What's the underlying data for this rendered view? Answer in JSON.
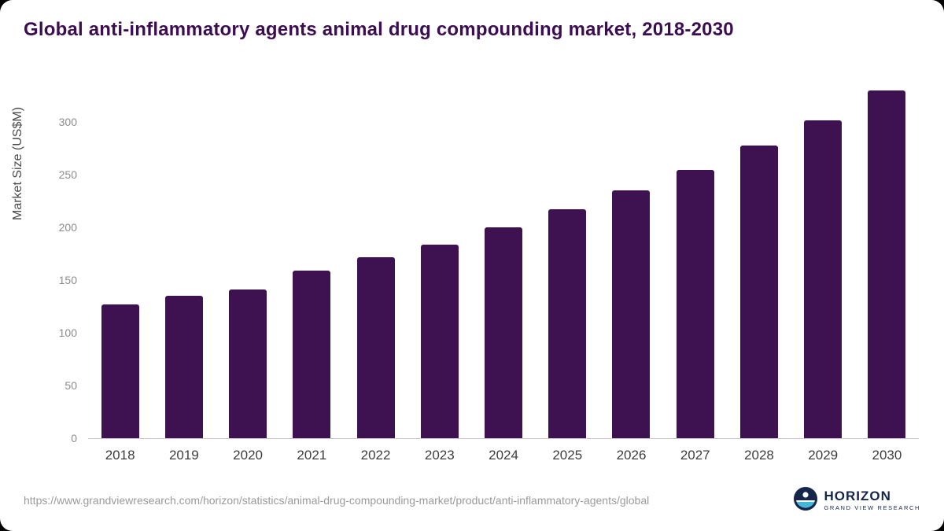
{
  "chart_data": {
    "type": "bar",
    "title": "Global anti-inflammatory agents animal drug compounding market, 2018-2030",
    "xlabel": "",
    "ylabel": "Market Size (US$M)",
    "categories": [
      "2018",
      "2019",
      "2020",
      "2021",
      "2022",
      "2023",
      "2024",
      "2025",
      "2026",
      "2027",
      "2028",
      "2029",
      "2030"
    ],
    "values": [
      127,
      135,
      141,
      159,
      172,
      184,
      200,
      217,
      235,
      255,
      278,
      302,
      330
    ],
    "yticks": [
      0,
      50,
      100,
      150,
      200,
      250,
      300
    ],
    "ylim": [
      0,
      345
    ],
    "grid": false,
    "legend_position": "none",
    "bar_color": "#3e1151"
  },
  "footer": {
    "source_url": "https://www.grandviewresearch.com/horizon/statistics/animal-drug-compounding-market/product/anti-inflammatory-agents/global",
    "logo": {
      "name": "HORIZON",
      "tagline": "GRAND VIEW RESEARCH"
    }
  },
  "colors": {
    "title": "#3c0d50",
    "bar": "#3e1151",
    "axis": "#c9c9c9",
    "tick_label": "#8c8c8c",
    "x_label": "#3d3d3d",
    "logo_navy": "#15254c",
    "logo_teal": "#45b8d6"
  }
}
